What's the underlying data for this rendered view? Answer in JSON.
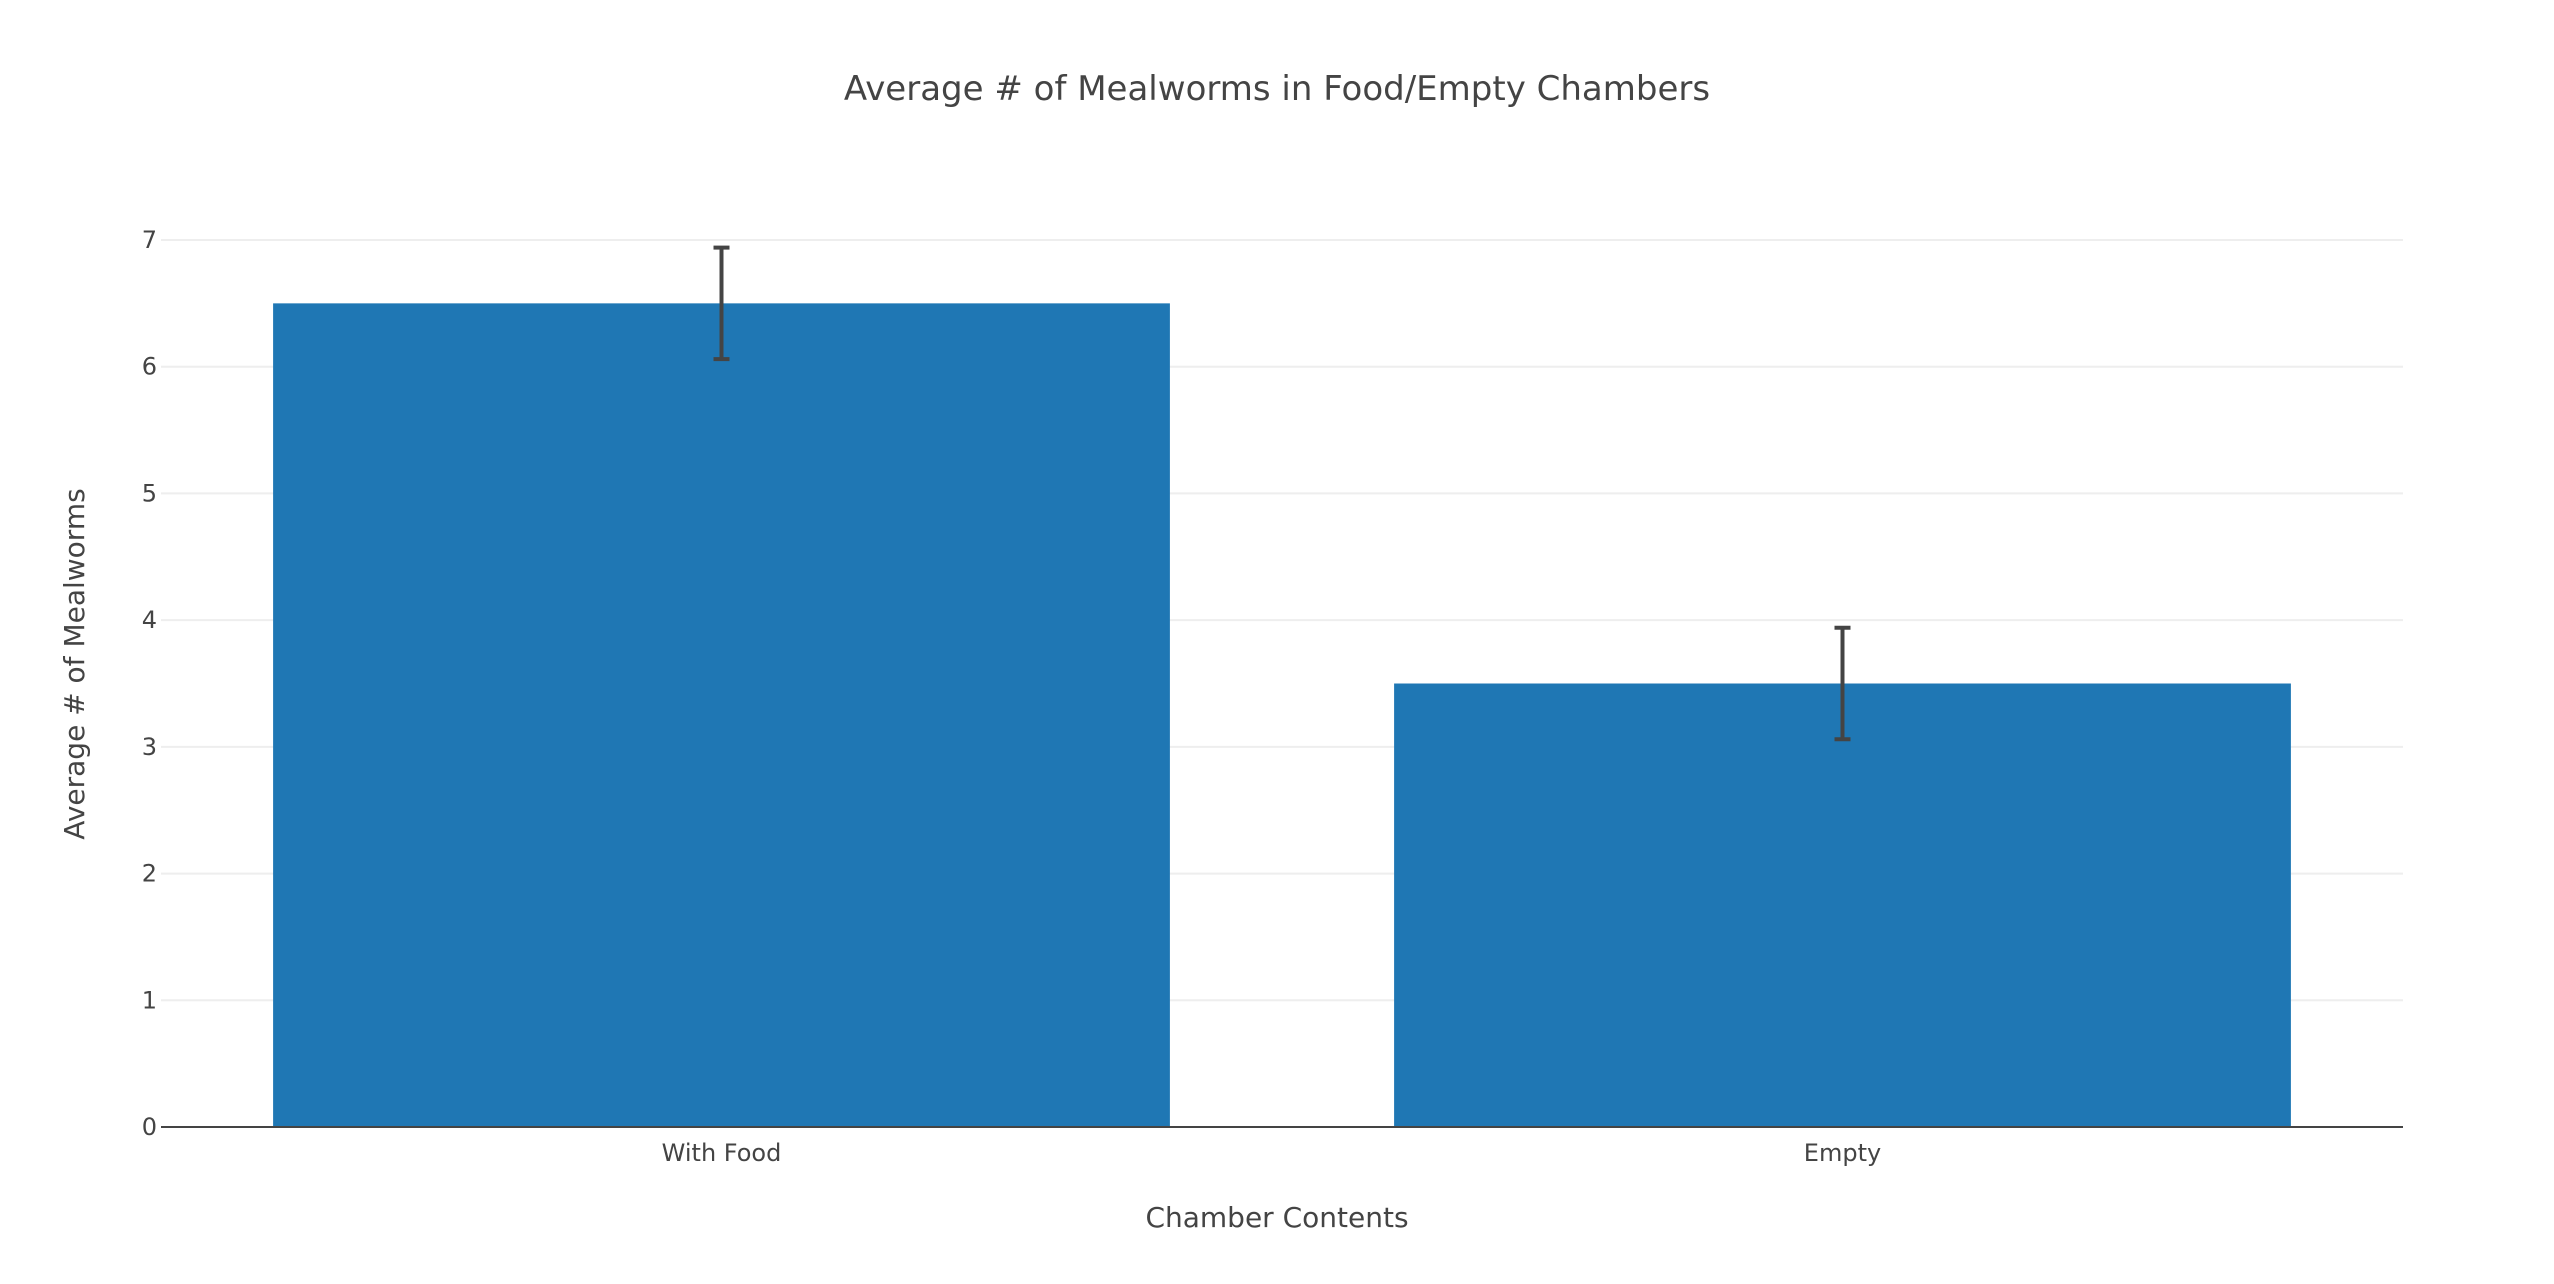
{
  "chart_data": {
    "type": "bar",
    "title": "Average # of Mealworms in Food/Empty Chambers",
    "xlabel": "Chamber Contents",
    "ylabel": "Average # of Mealworms",
    "categories": [
      "With Food",
      "Empty"
    ],
    "values": [
      6.5,
      3.5
    ],
    "error": [
      0.44,
      0.44
    ],
    "ylim": [
      0,
      7
    ],
    "yticks": [
      0,
      1,
      2,
      3,
      4,
      5,
      6,
      7
    ],
    "grid": true,
    "legend": "none",
    "bar_color": "#1f77b4",
    "errorbar_color": "#444444"
  }
}
